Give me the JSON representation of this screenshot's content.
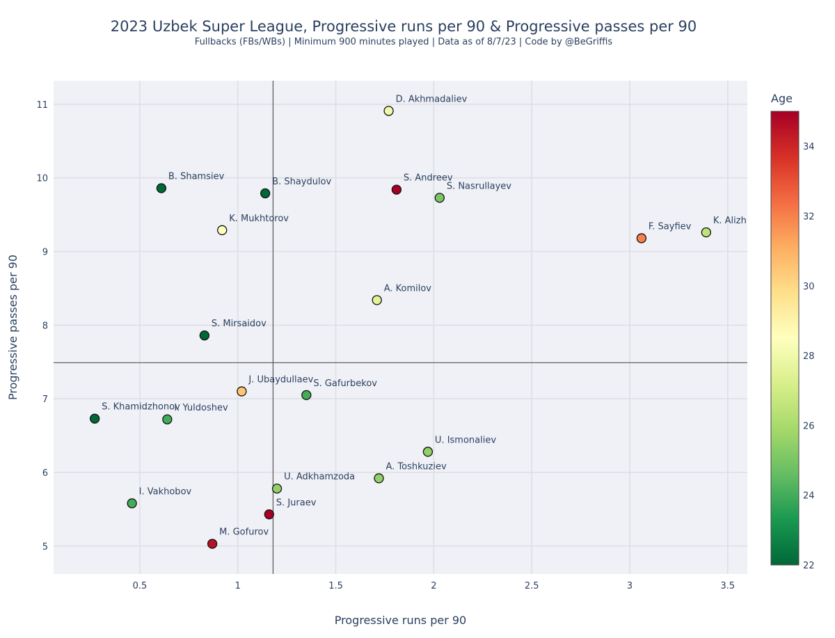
{
  "chart_data": {
    "type": "scatter",
    "title": "2023 Uzbek Super League, Progressive runs per 90 & Progressive passes per 90",
    "subtitle": "Fullbacks (FBs/WBs) | Minimum 900 minutes played | Data as of 8/7/23 | Code by @BeGriffis",
    "xlabel": "Progressive runs per 90",
    "ylabel": "Progressive passes per 90",
    "xlim": [
      0.06,
      3.6
    ],
    "ylim": [
      4.62,
      11.32
    ],
    "xticks": [
      0.5,
      1,
      1.5,
      2,
      2.5,
      3,
      3.5
    ],
    "xtick_labels": [
      "0.5",
      "1",
      "1.5",
      "2",
      "2.5",
      "3",
      "3.5"
    ],
    "yticks": [
      5,
      6,
      7,
      8,
      9,
      10,
      11
    ],
    "ytick_labels": [
      "5",
      "6",
      "7",
      "8",
      "9",
      "10",
      "11"
    ],
    "reference_lines": {
      "x": 1.18,
      "y": 7.49
    },
    "grid": true,
    "colorbar": {
      "title": "Age",
      "min": 22,
      "max": 35,
      "ticks": [
        22,
        24,
        26,
        28,
        30,
        32,
        34
      ],
      "tick_labels": [
        "22",
        "24",
        "26",
        "28",
        "30",
        "32",
        "34"
      ],
      "colorscale": [
        "#006837",
        "#1a9850",
        "#66bd63",
        "#a6d96a",
        "#d9ef8b",
        "#ffffbf",
        "#fee08b",
        "#fdae61",
        "#f46d43",
        "#d73027",
        "#a50026"
      ]
    },
    "points": [
      {
        "name": "D. Akhmadaliev",
        "x": 1.77,
        "y": 10.91,
        "age": 28
      },
      {
        "name": "B. Shamsiev",
        "x": 0.61,
        "y": 9.86,
        "age": 22
      },
      {
        "name": "B. Shaydulov",
        "x": 1.14,
        "y": 9.79,
        "age": 22
      },
      {
        "name": "S. Andreev",
        "x": 1.81,
        "y": 9.84,
        "age": 35
      },
      {
        "name": "S. Nasrullayev",
        "x": 2.03,
        "y": 9.73,
        "age": 25
      },
      {
        "name": "K. Mukhtorov",
        "x": 0.92,
        "y": 9.29,
        "age": 28.5
      },
      {
        "name": "F. Sayfiev",
        "x": 3.06,
        "y": 9.18,
        "age": 32
      },
      {
        "name": "K. Alizh",
        "x": 3.39,
        "y": 9.26,
        "age": 26.5
      },
      {
        "name": "A. Komilov",
        "x": 1.71,
        "y": 8.34,
        "age": 27.5
      },
      {
        "name": "S. Mirsaidov",
        "x": 0.83,
        "y": 7.86,
        "age": 22
      },
      {
        "name": "J. Ubaydullaev",
        "x": 1.02,
        "y": 7.1,
        "age": 30.5
      },
      {
        "name": "S. Gafurbekov",
        "x": 1.35,
        "y": 7.05,
        "age": 24
      },
      {
        "name": "S. Khamidzhonov",
        "x": 0.27,
        "y": 6.73,
        "age": 22
      },
      {
        "name": "I. Yuldoshev",
        "x": 0.64,
        "y": 6.72,
        "age": 24
      },
      {
        "name": "U. Ismonaliev",
        "x": 1.97,
        "y": 6.28,
        "age": 25.5
      },
      {
        "name": "A. Toshkuziev",
        "x": 1.72,
        "y": 5.92,
        "age": 25.5
      },
      {
        "name": "U. Adkhamzoda",
        "x": 1.2,
        "y": 5.78,
        "age": 25.5
      },
      {
        "name": "I. Vakhobov",
        "x": 0.46,
        "y": 5.58,
        "age": 24
      },
      {
        "name": "S. Juraev",
        "x": 1.16,
        "y": 5.43,
        "age": 35
      },
      {
        "name": "M. Gofurov",
        "x": 0.87,
        "y": 5.03,
        "age": 34.5
      }
    ]
  }
}
